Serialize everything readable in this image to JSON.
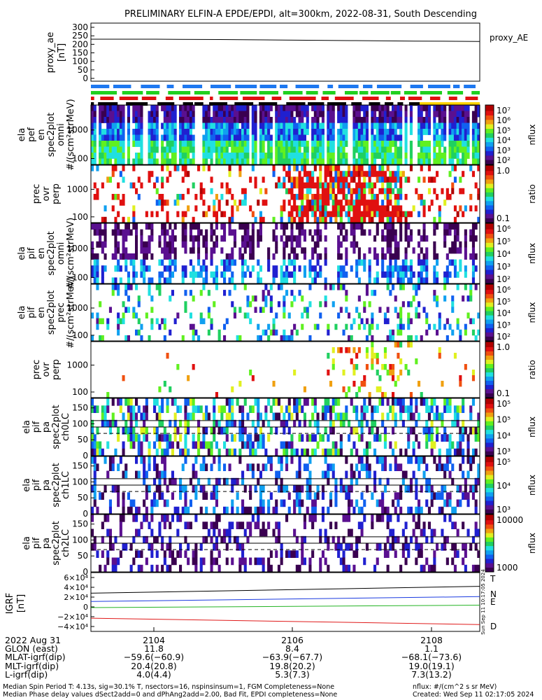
{
  "title": "PRELIMINARY ELFIN-A EPDE/EPDI, alt=300km, 2022-08-31, South Descending",
  "proxy_panel": {
    "ylabel": [
      "proxy_ae",
      "[nT]"
    ],
    "ticks": [
      "300",
      "250",
      "200",
      "150",
      "100",
      "50",
      "0"
    ],
    "legend": "proxy_AE"
  },
  "spec_panels": [
    {
      "id": "ela-pef-omni",
      "ylabel": [
        "ela",
        "pef",
        "en",
        "spec2plot",
        "omni",
        "#/(scm²strMeV)"
      ],
      "yticks": [
        "1000",
        "100"
      ],
      "cbar_ticks": [
        "10⁷",
        "10⁶",
        "10⁵",
        "10⁴",
        "10³",
        "10²"
      ],
      "cbar_label": "nflux"
    },
    {
      "id": "ela-pef-ratio",
      "ylabel": [
        "prec",
        "ovr",
        "perp"
      ],
      "yticks": [
        "1000",
        "100"
      ],
      "cbar_ticks": [
        "1.0",
        "0.1"
      ],
      "cbar_label": "ratio"
    },
    {
      "id": "ela-pif-omni",
      "ylabel": [
        "ela",
        "pif",
        "en",
        "spec2plot",
        "omni",
        "#/(scm²strMeV)"
      ],
      "yticks": [
        "1000",
        "100"
      ],
      "cbar_ticks": [
        "10⁶",
        "10⁵",
        "10⁴",
        "10³",
        "10²"
      ],
      "cbar_label": "nflux"
    },
    {
      "id": "ela-pif-prec",
      "ylabel": [
        "ela",
        "pif",
        "en",
        "spec2plot",
        "prec",
        "#/(scm²strMeV)"
      ],
      "yticks": [
        "1000",
        "100"
      ],
      "cbar_ticks": [
        "10⁶",
        "10⁵",
        "10⁴",
        "10³",
        "10²"
      ],
      "cbar_label": "nflux"
    },
    {
      "id": "ela-pif-ratio",
      "ylabel": [
        "prec",
        "ovr",
        "perp"
      ],
      "yticks": [
        "1000",
        "100"
      ],
      "cbar_ticks": [
        "1.0",
        "0.1"
      ],
      "cbar_label": "ratio"
    },
    {
      "id": "ela-pif-pa-ch0",
      "ylabel": [
        "ela",
        "pif",
        "pa",
        "spec2plot",
        "ch0LC"
      ],
      "yticks": [
        "150",
        "100",
        "50",
        "0"
      ],
      "cbar_ticks": [
        "10⁵",
        "10⁵",
        "10⁴",
        "10³"
      ],
      "cbar_label": "nflux"
    },
    {
      "id": "ela-pif-pa-ch1",
      "ylabel": [
        "ela",
        "pif",
        "pa",
        "spec2plot",
        "ch1LC"
      ],
      "yticks": [
        "150",
        "100",
        "50",
        "0"
      ],
      "cbar_ticks": [
        "10⁵",
        "10⁴",
        "10³"
      ],
      "cbar_label": "nflux"
    },
    {
      "id": "ela-pif-pa-ch2",
      "ylabel": [
        "ela",
        "pif",
        "pa",
        "spec2plot",
        "ch2LC"
      ],
      "yticks": [
        "150",
        "100",
        "50",
        "0"
      ],
      "cbar_ticks": [
        "10000",
        "1000"
      ],
      "cbar_label": "nflux"
    }
  ],
  "igrf_panel": {
    "ylabel": [
      "IGRF",
      "[nT]"
    ],
    "ticks": [
      "6×10⁴",
      "4×10⁴",
      "2×10⁴",
      "0",
      "−2×10⁴",
      "−4×10⁴"
    ],
    "legend": [
      "T",
      "N",
      "E",
      "D"
    ],
    "legend_colors": [
      "#000000",
      "#1a3ae0",
      "#23b323",
      "#e01a1a"
    ]
  },
  "side_stamp": "Sun Sep 11 10:17:05 2024",
  "xaxis": {
    "ticks": [
      "2104",
      "2106",
      "2108"
    ],
    "rows": [
      {
        "label": "2022 Aug 31",
        "v": [
          "2104",
          "2106",
          "2108"
        ]
      },
      {
        "label": "GLON (east)",
        "v": [
          "11.8",
          "8.4",
          "1.1"
        ]
      },
      {
        "label": "MLAT-igrf(dip)",
        "v": [
          "−59.6(−60.9)",
          "−63.9(−67.7)",
          "−68.1(−73.6)"
        ]
      },
      {
        "label": "MLT-igrf(dip)",
        "v": [
          "20.4(20.8)",
          "19.8(20.2)",
          "19.0(19.1)"
        ]
      },
      {
        "label": "L-igrf(dip)",
        "v": [
          "4.0(4.4)",
          "5.3(7.3)",
          "7.3(13.2)"
        ]
      }
    ]
  },
  "footer": {
    "line1": "Median Spin Period T: 4.13s, sig=30.1% T, nsectors=16, nspinsinsum=1, FGM Completeness=None",
    "line2": "Median Phase delay values dSect2add=0 and dPhAng2add=2.00, Bad Fit, EPDI completeness=None",
    "units": "nflux: #/(cm^2 s sr MeV)",
    "created": "Created: Wed Sep 11 02:17:05 2024"
  },
  "chart_data": {
    "type": "heatmap",
    "title": "PRELIMINARY ELFIN-A EPDE/EPDI, alt=300km, 2022-08-31, South Descending",
    "x_ticks": [
      "2104",
      "2106",
      "2108"
    ],
    "proxy_ae": {
      "x": [
        "2102.9",
        "2104.0",
        "2105.0",
        "2106.0",
        "2107.0",
        "2108.0",
        "2108.9"
      ],
      "y": [
        230,
        230,
        228,
        225,
        222,
        219,
        217
      ],
      "ylim": [
        0,
        300
      ],
      "series": "proxy_AE"
    },
    "igrf": {
      "ylim": [
        -50000,
        70000
      ],
      "x": [
        "2102.9",
        "2108.9"
      ],
      "series": [
        {
          "name": "T",
          "values": [
            28000,
            42000
          ]
        },
        {
          "name": "N",
          "values": [
            11000,
            21000
          ]
        },
        {
          "name": "E",
          "values": [
            -1500,
            3500
          ]
        },
        {
          "name": "D",
          "values": [
            -23000,
            -36000
          ]
        }
      ]
    }
  }
}
